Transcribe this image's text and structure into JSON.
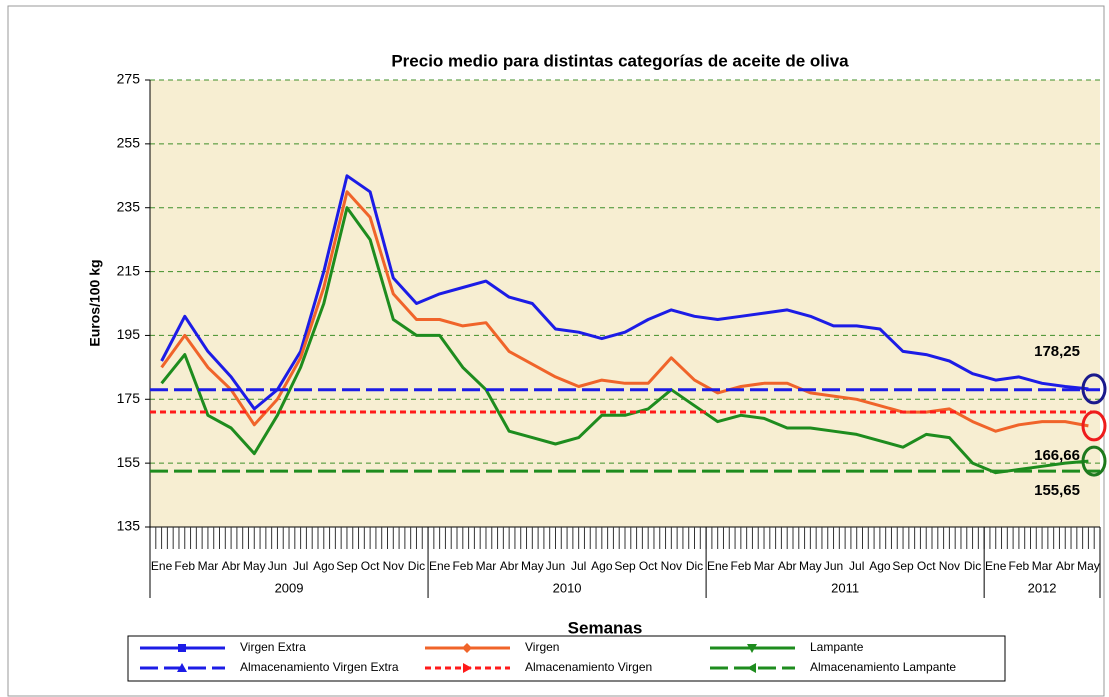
{
  "chart_data": {
    "type": "line",
    "title": "Precio medio para distintas categorías de aceite de oliva",
    "y_label": "Euros/100 kg",
    "x_label": "Semanas",
    "categories": [
      "Ene",
      "Feb",
      "Mar",
      "Abr",
      "May",
      "Jun",
      "Jul",
      "Ago",
      "Sep",
      "Oct",
      "Nov",
      "Dic",
      "Ene",
      "Feb",
      "Mar",
      "Abr",
      "May",
      "Jun",
      "Jul",
      "Ago",
      "Sep",
      "Oct",
      "Nov",
      "Dic",
      "Ene",
      "Feb",
      "Mar",
      "Abr",
      "May",
      "Jun",
      "Jul",
      "Ago",
      "Sep",
      "Oct",
      "Nov",
      "Dic",
      "Ene",
      "Feb",
      "Mar",
      "Abr",
      "May"
    ],
    "years": [
      "2009",
      "2010",
      "2011",
      "2012"
    ],
    "ylim": [
      135,
      275
    ],
    "yticks": [
      135,
      155,
      175,
      195,
      215,
      235,
      255,
      275
    ],
    "grid": true,
    "series": [
      {
        "name": "Virgen Extra",
        "color": "#1c1ce6",
        "values": [
          187,
          201,
          190,
          182,
          172,
          178,
          190,
          215,
          245,
          240,
          213,
          205,
          208,
          210,
          212,
          207,
          205,
          197,
          196,
          194,
          196,
          200,
          203,
          201,
          200,
          201,
          202,
          203,
          201,
          198,
          198,
          197,
          190,
          189,
          187,
          183,
          181,
          182,
          180,
          179,
          178.25
        ]
      },
      {
        "name": "Virgen",
        "color": "#f0642a",
        "values": [
          185,
          195,
          185,
          178,
          167,
          175,
          188,
          210,
          240,
          232,
          208,
          200,
          200,
          198,
          199,
          190,
          186,
          182,
          179,
          181,
          180,
          180,
          188,
          181,
          177,
          179,
          180,
          180,
          177,
          176,
          175,
          173,
          171,
          171,
          172,
          168,
          165,
          167,
          168,
          168,
          166.66
        ]
      },
      {
        "name": "Lampante",
        "color": "#1e8c1e",
        "values": [
          180,
          189,
          170,
          166,
          158,
          170,
          185,
          205,
          235,
          225,
          200,
          195,
          195,
          185,
          178,
          165,
          163,
          161,
          163,
          170,
          170,
          172,
          178,
          173,
          168,
          170,
          169,
          166,
          166,
          165,
          164,
          162,
          160,
          164,
          163,
          155,
          152,
          153,
          154,
          155,
          155.65
        ]
      },
      {
        "name": "Almacenamiento Virgen Extra",
        "color": "#1c1ce6",
        "value": 178
      },
      {
        "name": "Almacenamiento Virgen",
        "color": "#ff1a1a",
        "value": 171
      },
      {
        "name": "Almacenamiento Lampante",
        "color": "#1e8c1e",
        "value": 152.5
      }
    ],
    "annotations": [
      {
        "text": "178,25",
        "value": 178.25,
        "color": "#1a1a8c"
      },
      {
        "text": "166,66",
        "value": 166.66,
        "color": "#ee1c1c"
      },
      {
        "text": "155,65",
        "value": 155.65,
        "color": "#1e7a1e"
      }
    ]
  }
}
